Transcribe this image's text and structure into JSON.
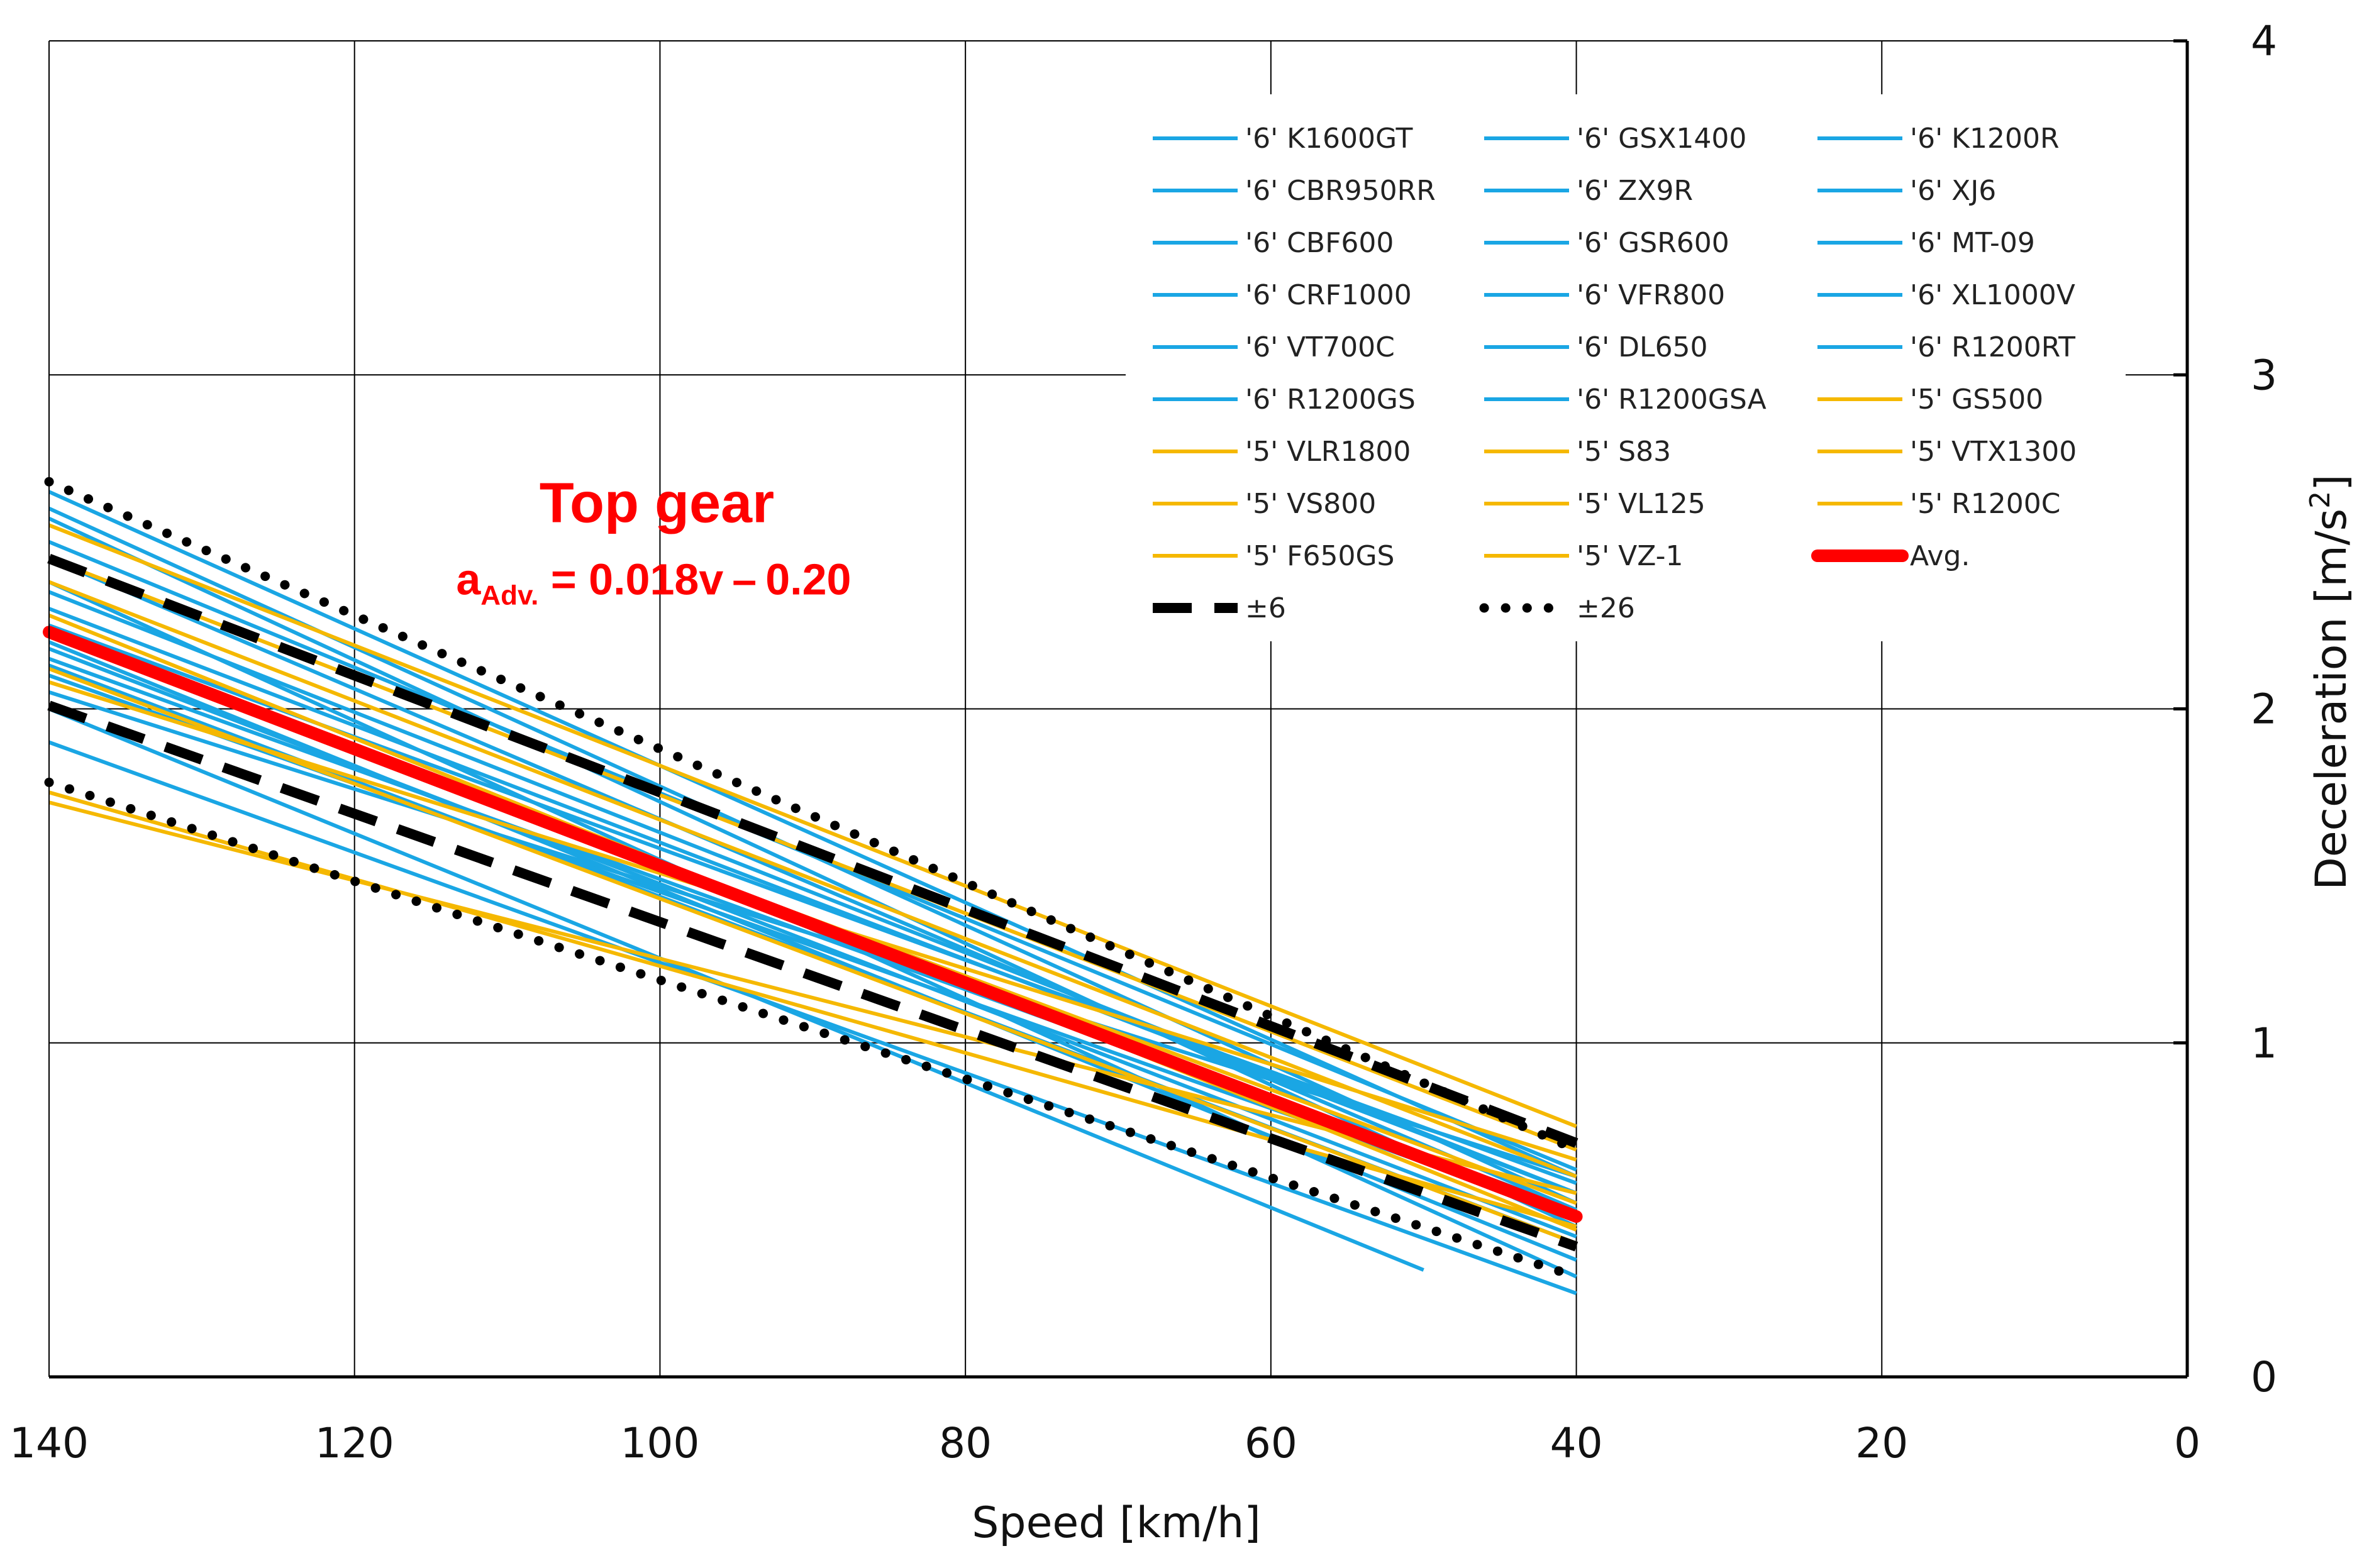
{
  "chart_data": {
    "type": "line",
    "title": "",
    "xlabel": "Speed [km/h]",
    "ylabel_main": "Deceleration [m/s",
    "ylabel_sup": "2",
    "ylabel_close": "]",
    "xlim": [
      140,
      0
    ],
    "ylim": [
      0,
      4
    ],
    "x_reversed": true,
    "grid": true,
    "x_ticks": [
      "140",
      "120",
      "100",
      "80",
      "60",
      "40",
      "20",
      "0"
    ],
    "y_ticks": [
      "0",
      "1",
      "2",
      "3",
      "4"
    ],
    "legend_position": "top-right",
    "colors": {
      "six_gear": "#1AA6E4",
      "five_gear": "#F5B800",
      "avg": "#FF0000",
      "band": "#000000"
    },
    "annotation": {
      "title": "Top gear",
      "eq_a": "a",
      "eq_sub": "Adv.",
      "eq_rest": " = 0.018v – 0.20",
      "color": "#FF0000",
      "at": [
        100,
        2.55
      ]
    },
    "series": [
      {
        "name": "'6' K1600GT",
        "group": "6",
        "x": [
          140,
          40
        ],
        "y": [
          2.65,
          0.6
        ]
      },
      {
        "name": "'6' GSX1400",
        "group": "6",
        "x": [
          140,
          40
        ],
        "y": [
          2.57,
          0.45
        ]
      },
      {
        "name": "'6' K1200R",
        "group": "6",
        "x": [
          140,
          40
        ],
        "y": [
          2.45,
          0.5
        ]
      },
      {
        "name": "'6' CBR950RR",
        "group": "6",
        "x": [
          140,
          40
        ],
        "y": [
          2.3,
          0.55
        ]
      },
      {
        "name": "'6' ZX9R",
        "group": "6",
        "x": [
          140,
          40
        ],
        "y": [
          2.2,
          0.35
        ]
      },
      {
        "name": "'6' XJ6",
        "group": "6",
        "x": [
          140,
          40
        ],
        "y": [
          2.13,
          0.4
        ]
      },
      {
        "name": "'6' CBF600",
        "group": "6",
        "x": [
          140,
          40
        ],
        "y": [
          2.05,
          0.6
        ]
      },
      {
        "name": "'6' GSR600",
        "group": "6",
        "x": [
          140,
          50
        ],
        "y": [
          2.0,
          0.32
        ]
      },
      {
        "name": "'6' MT-09",
        "group": "6",
        "x": [
          140,
          40
        ],
        "y": [
          1.9,
          0.25
        ]
      },
      {
        "name": "'6' CRF1000",
        "group": "6",
        "x": [
          140,
          40
        ],
        "y": [
          2.25,
          0.58
        ]
      },
      {
        "name": "'6' VFR800",
        "group": "6",
        "x": [
          140,
          40
        ],
        "y": [
          2.38,
          0.3
        ]
      },
      {
        "name": "'6' XL1000V",
        "group": "6",
        "x": [
          140,
          40
        ],
        "y": [
          2.1,
          0.48
        ]
      },
      {
        "name": "'6' VT700C",
        "group": "6",
        "x": [
          140,
          40
        ],
        "y": [
          2.6,
          0.52
        ]
      },
      {
        "name": "'6' DL650",
        "group": "6",
        "x": [
          140,
          40
        ],
        "y": [
          2.18,
          0.42
        ]
      },
      {
        "name": "'6' R1200RT",
        "group": "6",
        "x": [
          140,
          40
        ],
        "y": [
          2.5,
          0.62
        ]
      },
      {
        "name": "'6' R1200GS",
        "group": "6",
        "x": [
          140,
          40
        ],
        "y": [
          2.15,
          0.5
        ]
      },
      {
        "name": "'6' R1200GSA",
        "group": "6",
        "x": [
          140,
          40
        ],
        "y": [
          2.35,
          0.55
        ]
      },
      {
        "name": "'5' GS500",
        "group": "5",
        "x": [
          140,
          40
        ],
        "y": [
          2.55,
          0.75
        ]
      },
      {
        "name": "'5' VLR1800",
        "group": "5",
        "x": [
          140,
          40
        ],
        "y": [
          2.45,
          0.68
        ]
      },
      {
        "name": "'5' S83",
        "group": "5",
        "x": [
          140,
          40
        ],
        "y": [
          2.38,
          0.6
        ]
      },
      {
        "name": "'5' VTX1300",
        "group": "5",
        "x": [
          140,
          40
        ],
        "y": [
          2.28,
          0.44
        ]
      },
      {
        "name": "'5' VS800",
        "group": "5",
        "x": [
          140,
          40
        ],
        "y": [
          2.22,
          0.52
        ]
      },
      {
        "name": "'5' VL125",
        "group": "5",
        "x": [
          140,
          40
        ],
        "y": [
          2.12,
          0.4
        ]
      },
      {
        "name": "'5' R1200C",
        "group": "5",
        "x": [
          140,
          40
        ],
        "y": [
          1.75,
          0.45
        ]
      },
      {
        "name": "'5' F650GS",
        "group": "5",
        "x": [
          140,
          40
        ],
        "y": [
          1.72,
          0.55
        ]
      },
      {
        "name": "'5' VZ-1",
        "group": "5",
        "x": [
          140,
          40
        ],
        "y": [
          2.08,
          0.65
        ]
      },
      {
        "name": "Avg.",
        "group": "avg",
        "x": [
          140,
          40
        ],
        "y": [
          2.23,
          0.48
        ]
      },
      {
        "name": "±6",
        "group": "sigma1",
        "x": [
          140,
          40
        ],
        "y": [
          2.45,
          0.7
        ]
      },
      {
        "name": "",
        "group": "sigma1",
        "legend": false,
        "x": [
          140,
          40
        ],
        "y": [
          2.01,
          0.39
        ]
      },
      {
        "name": "±26",
        "group": "sigma2",
        "x": [
          140,
          40
        ],
        "y": [
          2.68,
          0.68
        ]
      },
      {
        "name": "",
        "group": "sigma2",
        "legend": false,
        "x": [
          140,
          40
        ],
        "y": [
          1.78,
          0.3
        ]
      }
    ]
  }
}
